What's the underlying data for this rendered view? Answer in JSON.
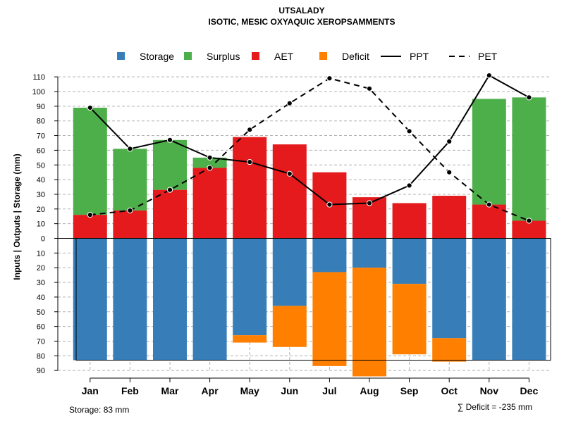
{
  "chart_data": {
    "type": "bar",
    "title": "UTSALADY",
    "subtitle": "ISOTIC, MESIC OXYAQUIC XEROPSAMMENTS",
    "ylabel": "Inputs | Outputs | Storage    (mm)",
    "categories": [
      "Jan",
      "Feb",
      "Mar",
      "Apr",
      "May",
      "Jun",
      "Jul",
      "Aug",
      "Sep",
      "Oct",
      "Nov",
      "Dec"
    ],
    "ylim": [
      -90,
      115
    ],
    "yticks": [
      {
        "value": 110,
        "label": "110"
      },
      {
        "value": 100,
        "label": "100"
      },
      {
        "value": 90,
        "label": "90"
      },
      {
        "value": 80,
        "label": "80"
      },
      {
        "value": 70,
        "label": "70"
      },
      {
        "value": 60,
        "label": "60"
      },
      {
        "value": 50,
        "label": "50"
      },
      {
        "value": 40,
        "label": "40"
      },
      {
        "value": 30,
        "label": "30"
      },
      {
        "value": 20,
        "label": "20"
      },
      {
        "value": 10,
        "label": "10"
      },
      {
        "value": 0,
        "label": "0"
      },
      {
        "value": -10,
        "label": "10"
      },
      {
        "value": -20,
        "label": "20"
      },
      {
        "value": -30,
        "label": "30"
      },
      {
        "value": -40,
        "label": "40"
      },
      {
        "value": -50,
        "label": "50"
      },
      {
        "value": -60,
        "label": "60"
      },
      {
        "value": -70,
        "label": "70"
      },
      {
        "value": -80,
        "label": "80"
      },
      {
        "value": -90,
        "label": "90"
      }
    ],
    "grid": true,
    "storage_capacity": 83,
    "series": [
      {
        "name": "AET",
        "color": "#E41A1C",
        "values": [
          16,
          19,
          33,
          48,
          69,
          64,
          45,
          28,
          24,
          29,
          23,
          12
        ]
      },
      {
        "name": "Surplus",
        "color": "#4DAF4A",
        "values": [
          73,
          42,
          34,
          7,
          0,
          0,
          0,
          0,
          0,
          0,
          72,
          84
        ]
      },
      {
        "name": "Storage",
        "color": "#377EB8",
        "values": [
          83,
          83,
          83,
          83,
          66,
          46,
          23,
          20,
          31,
          68,
          83,
          83
        ]
      },
      {
        "name": "Deficit",
        "color": "#FF7F00",
        "values": [
          0,
          0,
          0,
          0,
          5,
          28,
          64,
          74,
          48,
          16,
          0,
          0
        ]
      },
      {
        "name": "PPT",
        "style": "solid",
        "color": "#000000",
        "values": [
          89,
          61,
          67,
          55,
          52,
          44,
          23,
          24,
          36,
          66,
          111,
          96
        ]
      },
      {
        "name": "PET",
        "style": "dashed",
        "color": "#000000",
        "values": [
          16,
          19,
          33,
          48,
          74,
          92,
          109,
          102,
          73,
          45,
          23,
          12
        ]
      }
    ],
    "legend": {
      "position": "top",
      "items": [
        {
          "label": "Storage",
          "kind": "box",
          "color": "#377EB8"
        },
        {
          "label": "Surplus",
          "kind": "box",
          "color": "#4DAF4A"
        },
        {
          "label": "AET",
          "kind": "box",
          "color": "#E41A1C"
        },
        {
          "label": "Deficit",
          "kind": "box",
          "color": "#FF7F00"
        },
        {
          "label": "PPT",
          "kind": "solid",
          "color": "#000000"
        },
        {
          "label": "PET",
          "kind": "dashed",
          "color": "#000000"
        }
      ]
    },
    "footer": {
      "storage_text": "Storage: 83 mm",
      "deficit_text": "∑ Deficit = -235 mm"
    }
  }
}
